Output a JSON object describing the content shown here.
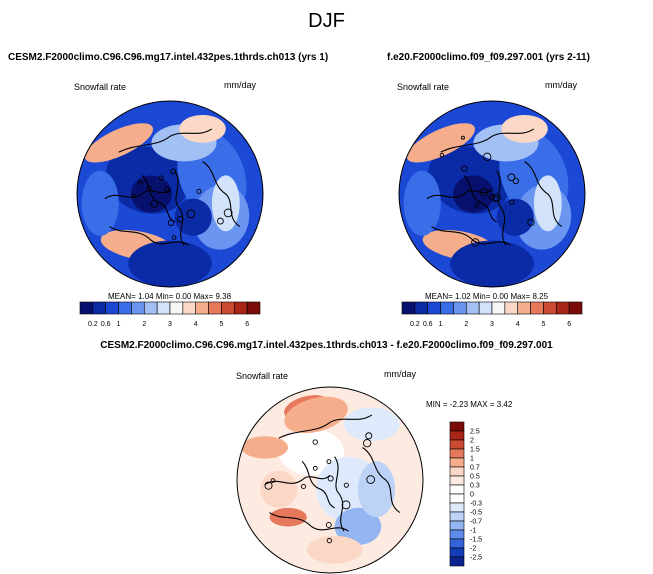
{
  "season_title": "DJF",
  "chart_data": [
    {
      "type": "heatmap",
      "title": "CESM2.F2000climo.C96.C96.mg17.intel.432pes.1thrds.ch013 (yrs 1)",
      "left_label": "Snowfall rate",
      "units": "mm/day",
      "projection": "polar-stereographic (north pole)",
      "stats": {
        "mean_label": "MEAN=",
        "mean": "1.04",
        "min_label": "Min=",
        "min": "0.00",
        "max_label": "Max=",
        "max": "9.38"
      },
      "colorbar": {
        "orientation": "horizontal",
        "levels": [
          "0.2",
          "0.6",
          "1",
          "1.5",
          "2",
          "2.5",
          "3",
          "3.5",
          "4",
          "4.5",
          "5",
          "5.5",
          "6"
        ],
        "tick_labels": [
          "0.2",
          "0.6",
          "1",
          "2",
          "3",
          "4",
          "5",
          "6"
        ],
        "colors": [
          "#08106e",
          "#0a2aa6",
          "#1c48d6",
          "#3a6ee8",
          "#6a95f0",
          "#a3c0f5",
          "#d2e2fa",
          "#f7f7f7",
          "#fbd8c6",
          "#f5ad8c",
          "#e6795b",
          "#cc4a32",
          "#a82517",
          "#7a0b08"
        ]
      }
    },
    {
      "type": "heatmap",
      "title": "f.e20.F2000climo.f09_f09.297.001 (yrs 2-11)",
      "left_label": "Snowfall rate",
      "units": "mm/day",
      "projection": "polar-stereographic (north pole)",
      "stats": {
        "mean_label": "MEAN=",
        "mean": "1.02",
        "min_label": "Min=",
        "min": "0.00",
        "max_label": "Max=",
        "max": "8.25"
      },
      "colorbar": {
        "orientation": "horizontal",
        "levels": [
          "0.2",
          "0.6",
          "1",
          "1.5",
          "2",
          "2.5",
          "3",
          "3.5",
          "4",
          "4.5",
          "5",
          "5.5",
          "6"
        ],
        "tick_labels": [
          "0.2",
          "0.6",
          "1",
          "2",
          "3",
          "4",
          "5",
          "6"
        ],
        "colors": [
          "#08106e",
          "#0a2aa6",
          "#1c48d6",
          "#3a6ee8",
          "#6a95f0",
          "#a3c0f5",
          "#d2e2fa",
          "#f7f7f7",
          "#fbd8c6",
          "#f5ad8c",
          "#e6795b",
          "#cc4a32",
          "#a82517",
          "#7a0b08"
        ]
      }
    },
    {
      "type": "heatmap",
      "title": "CESM2.F2000climo.C96.C96.mg17.intel.432pes.1thrds.ch013 - f.e20.F2000climo.f09_f09.297.001",
      "left_label": "Snowfall rate",
      "units": "mm/day",
      "projection": "polar-stereographic (north pole)",
      "stats": {
        "min_label": "MIN =",
        "min": "-2.23",
        "max_label": "MAX =",
        "max": "3.42"
      },
      "colorbar": {
        "orientation": "vertical",
        "labels_top_to_bottom": [
          "2.5",
          "2",
          "1.5",
          "1",
          "0.7",
          "0.5",
          "0.3",
          "0",
          "-0.3",
          "-0.5",
          "-0.7",
          "-1",
          "-1.5",
          "-2",
          "-2.5"
        ],
        "colors_top_to_bottom": [
          "#7a0b08",
          "#a82517",
          "#cc4a32",
          "#e6795b",
          "#f5ad8c",
          "#fbd8c6",
          "#fdebe2",
          "#ffffff",
          "#ffffff",
          "#deeafb",
          "#bcd3f7",
          "#93b5f1",
          "#5f8be8",
          "#3563da",
          "#153cb8",
          "#0a2390"
        ]
      }
    }
  ]
}
